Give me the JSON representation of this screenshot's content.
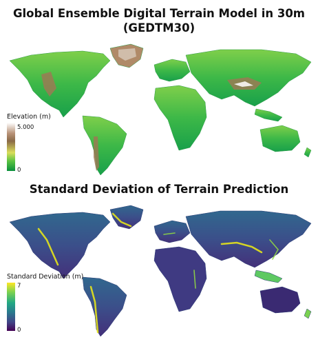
{
  "titles": {
    "top_line1": "Global Ensemble Digital Terrain Model in 30m",
    "top_line2": "(GEDTM30)",
    "bottom": "Standard Deviation of Terrain Prediction"
  },
  "elevation_legend": {
    "title": "Elevation (m)",
    "max_label": "5.000",
    "min_label": "0",
    "colors": [
      "#ffffff",
      "#b89278",
      "#8a6a47",
      "#d9dd5a",
      "#59c242",
      "#0a8f3c"
    ]
  },
  "sd_legend": {
    "title": "Standard Deviation (m)",
    "max_label": "7",
    "min_label": "0",
    "colors": [
      "#fde725",
      "#7ad151",
      "#22a884",
      "#2a788e",
      "#414487",
      "#440154"
    ]
  },
  "palette": {
    "ocean": "#ffffff",
    "elevation_land": "#33b84a",
    "sd_land": "#3b3d86"
  }
}
